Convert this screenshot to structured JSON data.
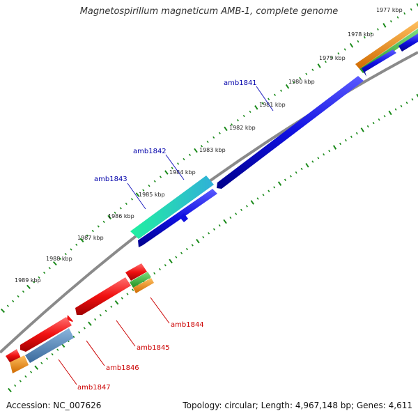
{
  "title": "Magnetospirillum magneticum AMB-1, complete genome",
  "footer": {
    "accession": "Accession: NC_007626",
    "summary": "Topology: circular; Length: 4,967,148 bp; Genes: 4,611"
  },
  "colors": {
    "background": "#ffffff",
    "blue_gene": "#1010e0",
    "red_gene": "#f01010",
    "cyan_teal_gene": "#30d0b0",
    "steel_blue_gene": "#4a80b8",
    "orange_feature": "#f08a10",
    "green_feature": "#30c040",
    "backbone": "#808080",
    "tick_mark": "#1a8a1a",
    "blue_label": "#0000aa",
    "red_label": "#cc0000"
  },
  "scale": {
    "unit": "kbp",
    "labels": [
      "1977 kbp",
      "1978 kbp",
      "1979 kbp",
      "1980 kbp",
      "1981 kbp",
      "1982 kbp",
      "1983 kbp",
      "1984 kbp",
      "1985 kbp",
      "1986 kbp",
      "1987 kbp",
      "1988 kbp",
      "1989 kbp"
    ]
  },
  "gene_labels": {
    "forward": [
      "amb1841",
      "amb1842",
      "amb1843"
    ],
    "reverse": [
      "amb1844",
      "amb1845",
      "amb1846",
      "amb1847"
    ]
  }
}
